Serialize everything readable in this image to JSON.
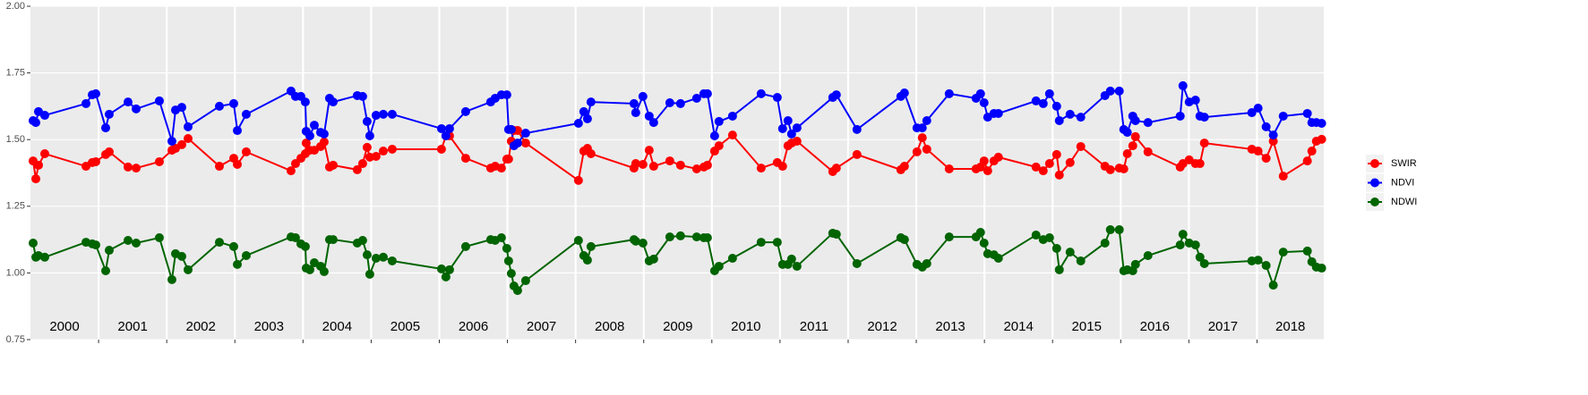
{
  "chart_data": {
    "type": "line",
    "x": [
      2000.039,
      2000.079,
      2000.118,
      2000.21,
      2000.815,
      2000.907,
      2000.959,
      2001.104,
      2001.156,
      2001.432,
      2001.551,
      2001.892,
      2002.076,
      2002.129,
      2002.221,
      2002.313,
      2002.773,
      2002.983,
      2003.036,
      2003.167,
      2003.824,
      2003.89,
      2003.969,
      2004.034,
      2004.047,
      2004.1,
      2004.166,
      2004.258,
      2004.31,
      2004.389,
      2004.442,
      2004.796,
      2004.875,
      2004.941,
      2004.98,
      2005.072,
      2005.178,
      2005.309,
      2006.032,
      2006.097,
      2006.15,
      2006.387,
      2006.754,
      2006.82,
      2006.912,
      2006.991,
      2007.017,
      2007.057,
      2007.096,
      2007.149,
      2007.267,
      2008.042,
      2008.121,
      2008.174,
      2008.226,
      2008.857,
      2008.883,
      2008.988,
      2009.08,
      2009.146,
      2009.383,
      2009.54,
      2009.777,
      2009.882,
      2009.935,
      2010.04,
      2010.105,
      2010.303,
      2010.723,
      2010.96,
      2011.038,
      2011.117,
      2011.17,
      2011.249,
      2011.774,
      2011.827,
      2012.129,
      2012.773,
      2012.826,
      2013.01,
      2013.088,
      2013.154,
      2013.483,
      2013.877,
      2013.943,
      2013.995,
      2014.048,
      2014.14,
      2014.205,
      2014.757,
      2014.863,
      2014.955,
      2015.06,
      2015.099,
      2015.257,
      2015.414,
      2015.769,
      2015.848,
      2015.979,
      2016.045,
      2016.097,
      2016.177,
      2016.216,
      2016.4,
      2016.873,
      2016.913,
      2017.005,
      2017.097,
      2017.163,
      2017.228,
      2017.924,
      2018.016,
      2018.134,
      2018.239,
      2018.385,
      2018.739,
      2018.805,
      2018.871,
      2018.949
    ],
    "series": [
      {
        "name": "SWIR",
        "color": "#ff0000",
        "values": [
          1.42,
          1.353,
          1.404,
          1.447,
          1.4,
          1.414,
          1.417,
          1.444,
          1.454,
          1.397,
          1.393,
          1.417,
          1.46,
          1.467,
          1.481,
          1.504,
          1.4,
          1.43,
          1.407,
          1.454,
          1.383,
          1.41,
          1.43,
          1.447,
          1.487,
          1.46,
          1.46,
          1.474,
          1.491,
          1.397,
          1.404,
          1.387,
          1.41,
          1.471,
          1.434,
          1.437,
          1.457,
          1.464,
          1.464,
          1.514,
          1.514,
          1.43,
          1.393,
          1.4,
          1.393,
          1.427,
          1.427,
          1.494,
          1.534,
          1.534,
          1.487,
          1.347,
          1.457,
          1.467,
          1.447,
          1.393,
          1.41,
          1.407,
          1.46,
          1.4,
          1.42,
          1.404,
          1.39,
          1.397,
          1.404,
          1.457,
          1.477,
          1.517,
          1.393,
          1.414,
          1.4,
          1.477,
          1.487,
          1.494,
          1.38,
          1.393,
          1.444,
          1.387,
          1.4,
          1.454,
          1.507,
          1.464,
          1.39,
          1.39,
          1.397,
          1.42,
          1.383,
          1.42,
          1.434,
          1.397,
          1.383,
          1.41,
          1.444,
          1.367,
          1.414,
          1.474,
          1.4,
          1.387,
          1.393,
          1.39,
          1.447,
          1.477,
          1.511,
          1.454,
          1.397,
          1.41,
          1.424,
          1.41,
          1.41,
          1.487,
          1.464,
          1.457,
          1.43,
          1.494,
          1.363,
          1.42,
          1.457,
          1.494,
          1.501
        ]
      },
      {
        "name": "NDVI",
        "color": "#0000ff",
        "values": [
          1.571,
          1.564,
          1.605,
          1.591,
          1.635,
          1.668,
          1.672,
          1.544,
          1.595,
          1.641,
          1.615,
          1.645,
          1.494,
          1.611,
          1.621,
          1.548,
          1.625,
          1.635,
          1.534,
          1.595,
          1.682,
          1.662,
          1.662,
          1.641,
          1.531,
          1.514,
          1.554,
          1.527,
          1.521,
          1.655,
          1.641,
          1.665,
          1.662,
          1.568,
          1.514,
          1.591,
          1.595,
          1.595,
          1.541,
          1.514,
          1.541,
          1.605,
          1.641,
          1.655,
          1.668,
          1.668,
          1.538,
          1.538,
          1.477,
          1.487,
          1.524,
          1.561,
          1.605,
          1.578,
          1.641,
          1.635,
          1.601,
          1.662,
          1.588,
          1.564,
          1.638,
          1.635,
          1.655,
          1.672,
          1.672,
          1.514,
          1.568,
          1.588,
          1.672,
          1.658,
          1.541,
          1.571,
          1.521,
          1.544,
          1.658,
          1.668,
          1.538,
          1.662,
          1.675,
          1.544,
          1.544,
          1.571,
          1.672,
          1.655,
          1.672,
          1.638,
          1.584,
          1.598,
          1.598,
          1.645,
          1.635,
          1.672,
          1.625,
          1.571,
          1.595,
          1.584,
          1.665,
          1.682,
          1.682,
          1.538,
          1.527,
          1.588,
          1.571,
          1.564,
          1.588,
          1.702,
          1.641,
          1.648,
          1.588,
          1.584,
          1.601,
          1.618,
          1.548,
          1.517,
          1.588,
          1.598,
          1.564,
          1.564,
          1.561
        ]
      },
      {
        "name": "NDWI",
        "color": "#006400",
        "values": [
          1.112,
          1.059,
          1.065,
          1.059,
          1.115,
          1.109,
          1.105,
          1.008,
          1.085,
          1.122,
          1.112,
          1.132,
          0.975,
          1.072,
          1.062,
          1.012,
          1.115,
          1.099,
          1.032,
          1.065,
          1.135,
          1.132,
          1.109,
          1.099,
          1.018,
          1.012,
          1.038,
          1.025,
          1.005,
          1.125,
          1.125,
          1.112,
          1.122,
          1.068,
          0.995,
          1.055,
          1.059,
          1.045,
          1.015,
          0.985,
          1.012,
          1.099,
          1.125,
          1.122,
          1.132,
          1.092,
          1.045,
          0.998,
          0.951,
          0.934,
          0.971,
          1.122,
          1.065,
          1.048,
          1.099,
          1.125,
          1.119,
          1.112,
          1.045,
          1.052,
          1.135,
          1.139,
          1.135,
          1.132,
          1.132,
          1.008,
          1.025,
          1.055,
          1.115,
          1.115,
          1.032,
          1.032,
          1.052,
          1.025,
          1.149,
          1.145,
          1.035,
          1.132,
          1.125,
          1.032,
          1.022,
          1.035,
          1.135,
          1.135,
          1.152,
          1.112,
          1.072,
          1.068,
          1.055,
          1.142,
          1.125,
          1.132,
          1.092,
          1.012,
          1.078,
          1.045,
          1.112,
          1.162,
          1.162,
          1.008,
          1.012,
          1.008,
          1.032,
          1.065,
          1.105,
          1.145,
          1.112,
          1.105,
          1.059,
          1.035,
          1.045,
          1.048,
          1.028,
          0.954,
          1.078,
          1.082,
          1.042,
          1.022,
          1.018
        ]
      }
    ],
    "xlim": [
      2000,
      2018.98
    ],
    "xticks": [
      2001,
      2002,
      2003,
      2004,
      2005,
      2006,
      2007,
      2008,
      2009,
      2010,
      2011,
      2012,
      2013,
      2014,
      2015,
      2016,
      2017,
      2018
    ],
    "year_labels": [
      "2000",
      "2001",
      "2002",
      "2003",
      "2004",
      "2005",
      "2006",
      "2007",
      "2008",
      "2009",
      "2010",
      "2011",
      "2012",
      "2013",
      "2014",
      "2015",
      "2016",
      "2017",
      "2018"
    ],
    "ylim": [
      0.75,
      2.0
    ],
    "yticks": [
      {
        "value": 0.75,
        "label": "0.75"
      },
      {
        "value": 1.0,
        "label": "1.00"
      },
      {
        "value": 1.25,
        "label": "1.25"
      },
      {
        "value": 1.5,
        "label": "1.50"
      },
      {
        "value": 1.75,
        "label": "1.75"
      },
      {
        "value": 2.0,
        "label": "2.00"
      }
    ],
    "grid": true,
    "legend_position": "right"
  }
}
